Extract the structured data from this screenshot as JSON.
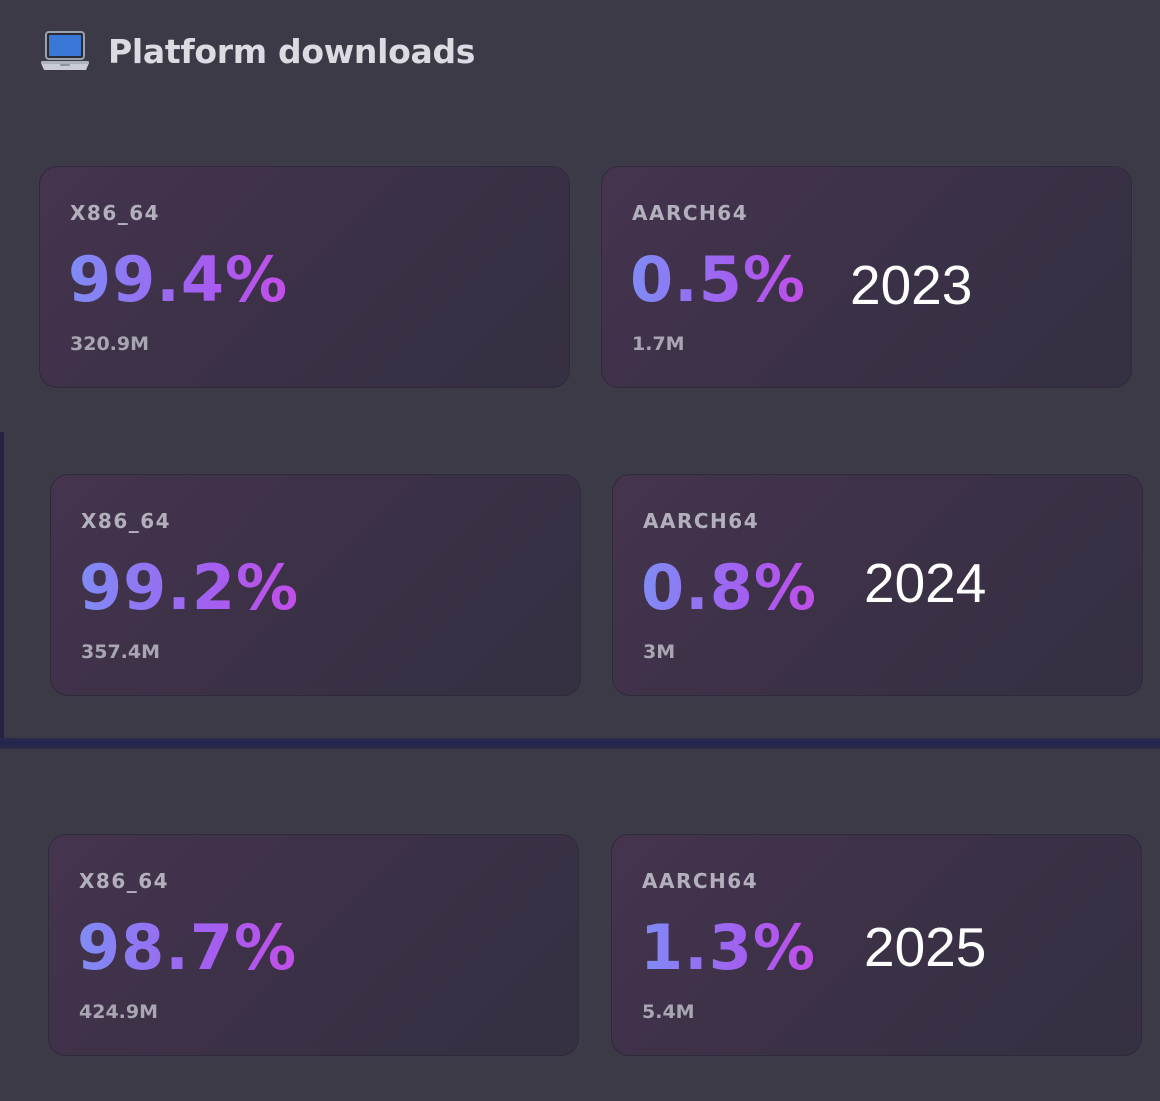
{
  "header": {
    "icon": "laptop-icon",
    "title": "Platform downloads"
  },
  "groups": [
    {
      "year": "2023",
      "platforms": [
        {
          "label": "X86_64",
          "percent": "99.4%",
          "count": "320.9M"
        },
        {
          "label": "AARCH64",
          "percent": "0.5%",
          "count": "1.7M"
        }
      ]
    },
    {
      "year": "2024",
      "platforms": [
        {
          "label": "X86_64",
          "percent": "99.2%",
          "count": "357.4M"
        },
        {
          "label": "AARCH64",
          "percent": "0.8%",
          "count": "3M"
        }
      ]
    },
    {
      "year": "2025",
      "platforms": [
        {
          "label": "X86_64",
          "percent": "98.7%",
          "count": "424.9M"
        },
        {
          "label": "AARCH64",
          "percent": "1.3%",
          "count": "5.4M"
        }
      ]
    }
  ],
  "colors": {
    "background": "#3c3947",
    "accent_start": "#7f8cf5",
    "accent_end": "#c24ee8",
    "label": "#b3b0bd"
  }
}
